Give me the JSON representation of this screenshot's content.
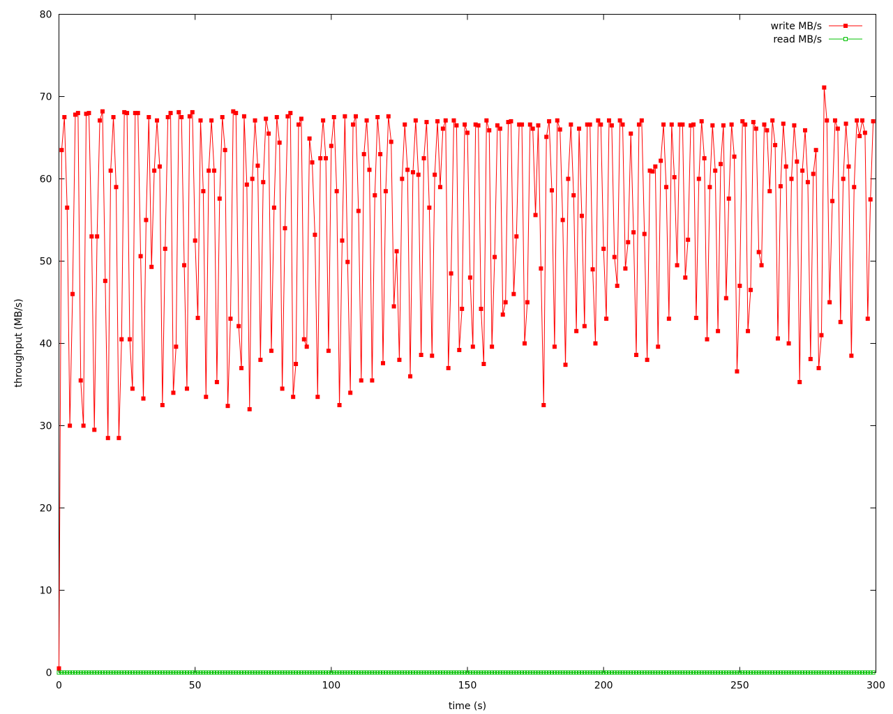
{
  "chart_data": {
    "type": "line",
    "title": "",
    "xlabel": "time (s)",
    "ylabel": "throughput (MB/s)",
    "xlim": [
      0,
      300
    ],
    "ylim": [
      0,
      80
    ],
    "xticks": [
      0,
      50,
      100,
      150,
      200,
      250,
      300
    ],
    "yticks": [
      0,
      10,
      20,
      30,
      40,
      50,
      60,
      70,
      80
    ],
    "grid": false,
    "legend": "top-right",
    "series": [
      {
        "name": "write MB/s",
        "color": "#ff0000",
        "marker": "filled-square",
        "x": [
          0,
          1,
          2,
          3,
          4,
          5,
          6,
          7,
          8,
          9,
          10,
          11,
          12,
          13,
          14,
          15,
          16,
          17,
          18,
          19,
          20,
          21,
          22,
          23,
          24,
          25,
          26,
          27,
          28,
          29,
          30,
          31,
          32,
          33,
          34,
          35,
          36,
          37,
          38,
          39,
          40,
          41,
          42,
          43,
          44,
          45,
          46,
          47,
          48,
          49,
          50,
          51,
          52,
          53,
          54,
          55,
          56,
          57,
          58,
          59,
          60,
          61,
          62,
          63,
          64,
          65,
          66,
          67,
          68,
          69,
          70,
          71,
          72,
          73,
          74,
          75,
          76,
          77,
          78,
          79,
          80,
          81,
          82,
          83,
          84,
          85,
          86,
          87,
          88,
          89,
          90,
          91,
          92,
          93,
          94,
          95,
          96,
          97,
          98,
          99,
          100,
          101,
          102,
          103,
          104,
          105,
          106,
          107,
          108,
          109,
          110,
          111,
          112,
          113,
          114,
          115,
          116,
          117,
          118,
          119,
          120,
          121,
          122,
          123,
          124,
          125,
          126,
          127,
          128,
          129,
          130,
          131,
          132,
          133,
          134,
          135,
          136,
          137,
          138,
          139,
          140,
          141,
          142,
          143,
          144,
          145,
          146,
          147,
          148,
          149,
          150,
          151,
          152,
          153,
          154,
          155,
          156,
          157,
          158,
          159,
          160,
          161,
          162,
          163,
          164,
          165,
          166,
          167,
          168,
          169,
          170,
          171,
          172,
          173,
          174,
          175,
          176,
          177,
          178,
          179,
          180,
          181,
          182,
          183,
          184,
          185,
          186,
          187,
          188,
          189,
          190,
          191,
          192,
          193,
          194,
          195,
          196,
          197,
          198,
          199,
          200,
          201,
          202,
          203,
          204,
          205,
          206,
          207,
          208,
          209,
          210,
          211,
          212,
          213,
          214,
          215,
          216,
          217,
          218,
          219,
          220,
          221,
          222,
          223,
          224,
          225,
          226,
          227,
          228,
          229,
          230,
          231,
          232,
          233,
          234,
          235,
          236,
          237,
          238,
          239,
          240,
          241,
          242,
          243,
          244,
          245,
          246,
          247,
          248,
          249,
          250,
          251,
          252,
          253,
          254,
          255,
          256,
          257,
          258,
          259,
          260,
          261,
          262,
          263,
          264,
          265,
          266,
          267,
          268,
          269,
          270,
          271,
          272,
          273,
          274,
          275,
          276,
          277,
          278,
          279,
          280,
          281,
          282,
          283,
          284,
          285,
          286,
          287,
          288,
          289,
          290,
          291,
          292,
          293,
          294,
          295,
          296,
          297,
          298,
          299
        ],
        "values": [
          0.5,
          63.5,
          67.5,
          56.5,
          30.0,
          46.0,
          67.8,
          68.0,
          35.5,
          30.0,
          67.9,
          68.0,
          53.0,
          29.5,
          53.0,
          67.1,
          68.2,
          47.6,
          28.5,
          61.0,
          67.5,
          59.0,
          28.5,
          40.5,
          68.1,
          68.0,
          40.5,
          34.5,
          68.0,
          68.0,
          50.6,
          33.3,
          55.0,
          67.5,
          49.3,
          61.0,
          67.1,
          61.5,
          32.5,
          51.5,
          67.5,
          68.0,
          34.0,
          39.6,
          68.1,
          67.5,
          49.5,
          34.5,
          67.6,
          68.1,
          52.5,
          43.1,
          67.1,
          58.5,
          33.5,
          61.0,
          67.1,
          61.0,
          35.3,
          57.6,
          67.5,
          63.5,
          32.4,
          43.0,
          68.2,
          68.0,
          42.1,
          37.0,
          67.6,
          59.3,
          32.0,
          60.0,
          67.1,
          61.6,
          38.0,
          59.6,
          67.3,
          65.5,
          39.1,
          56.5,
          67.5,
          64.4,
          34.5,
          54.0,
          67.6,
          68.0,
          33.5,
          37.5,
          66.6,
          67.3,
          40.5,
          39.6,
          64.9,
          62.0,
          53.2,
          33.5,
          62.5,
          67.1,
          62.5,
          39.1,
          64.0,
          67.5,
          58.5,
          32.5,
          52.5,
          67.6,
          49.9,
          34.0,
          66.6,
          67.6,
          56.1,
          35.5,
          63.0,
          67.1,
          61.1,
          35.5,
          58.0,
          67.5,
          63.0,
          37.6,
          58.5,
          67.6,
          64.5,
          44.5,
          51.2,
          38.0,
          60.0,
          66.6,
          61.1,
          36.0,
          60.8,
          67.1,
          60.5,
          38.6,
          62.5,
          66.9,
          56.5,
          38.5,
          60.5,
          67.0,
          59.0,
          66.1,
          67.1,
          37.0,
          48.5,
          67.1,
          66.5,
          39.2,
          44.2,
          66.6,
          65.6,
          48.0,
          39.6,
          66.6,
          66.5,
          44.2,
          37.5,
          67.1,
          65.9,
          39.6,
          50.5,
          66.5,
          66.1,
          43.5,
          45.0,
          66.9,
          67.0,
          46.0,
          53.0,
          66.6,
          66.6,
          40.0,
          45.0,
          66.6,
          66.1,
          55.6,
          66.5,
          49.1,
          32.5,
          65.1,
          67.0,
          58.6,
          39.6,
          67.1,
          66.0,
          55.0,
          37.4,
          60.0,
          66.6,
          58.0,
          41.5,
          66.1,
          55.5,
          42.1,
          66.6,
          66.6,
          49.0,
          40.0,
          67.1,
          66.6,
          51.5,
          43.0,
          67.1,
          66.5,
          50.5,
          47.0,
          67.1,
          66.6,
          49.1,
          52.3,
          65.5,
          53.5,
          38.6,
          66.6,
          67.1,
          53.3,
          38.0,
          61.0,
          60.9,
          61.5,
          39.6,
          62.2,
          66.6,
          59.0,
          43.0,
          66.6,
          60.2,
          49.5,
          66.6,
          66.6,
          48.0,
          52.6,
          66.5,
          66.6,
          43.1,
          60.0,
          67.0,
          62.5,
          40.5,
          59.0,
          66.5,
          61.0,
          41.5,
          61.8,
          66.5,
          45.5,
          57.6,
          66.6,
          62.7,
          36.6,
          47.0,
          67.0,
          66.6,
          41.5,
          46.5,
          66.9,
          66.1,
          51.1,
          49.5,
          66.6,
          65.9,
          58.5,
          67.1,
          64.1,
          40.6,
          59.1,
          66.7,
          61.5,
          40.0,
          60.0,
          66.5,
          62.1,
          35.3,
          61.0,
          65.9,
          59.6,
          38.1,
          60.6,
          63.5,
          37.0,
          41.0,
          71.1,
          67.1,
          45.0,
          57.3,
          67.1,
          66.1,
          42.6,
          60.0,
          66.7,
          61.5,
          38.5,
          59.0,
          67.1,
          65.2,
          67.1,
          65.6,
          43.0,
          57.5,
          67.0
        ]
      },
      {
        "name": "read MB/s",
        "color": "#00c000",
        "marker": "open-square",
        "x_start": 0,
        "x_end": 299,
        "x_step": 1,
        "value": 0
      }
    ]
  }
}
